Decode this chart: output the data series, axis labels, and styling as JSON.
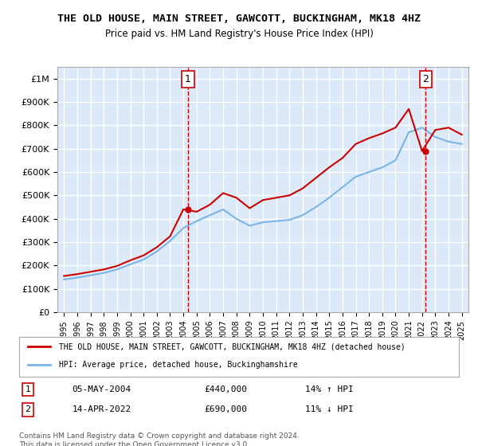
{
  "title": "THE OLD HOUSE, MAIN STREET, GAWCOTT, BUCKINGHAM, MK18 4HZ",
  "subtitle": "Price paid vs. HM Land Registry's House Price Index (HPI)",
  "xlabel": "",
  "ylabel": "",
  "ylim": [
    0,
    1050000
  ],
  "yticks": [
    0,
    100000,
    200000,
    300000,
    400000,
    500000,
    600000,
    700000,
    800000,
    900000,
    1000000
  ],
  "ytick_labels": [
    "£0",
    "£100K",
    "£200K",
    "£300K",
    "£400K",
    "£500K",
    "£600K",
    "£700K",
    "£800K",
    "£900K",
    "£1M"
  ],
  "background_color": "#dce9f8",
  "plot_bg_color": "#dce9f8",
  "grid_color": "#ffffff",
  "sale1_date": "05-MAY-2004",
  "sale1_price": 440000,
  "sale1_label": "1",
  "sale1_hpi_diff": "14% ↑ HPI",
  "sale2_date": "14-APR-2022",
  "sale2_price": 690000,
  "sale2_label": "2",
  "sale2_hpi_diff": "11% ↓ HPI",
  "legend_line1": "THE OLD HOUSE, MAIN STREET, GAWCOTT, BUCKINGHAM, MK18 4HZ (detached house)",
  "legend_line2": "HPI: Average price, detached house, Buckinghamshire",
  "footer": "Contains HM Land Registry data © Crown copyright and database right 2024.\nThis data is licensed under the Open Government Licence v3.0.",
  "hpi_color": "#7ab4e8",
  "price_color": "#cc0000",
  "sale_vline_color": "#cc0000",
  "years": [
    1995,
    1996,
    1997,
    1998,
    1999,
    2000,
    2001,
    2002,
    2003,
    2004,
    2005,
    2006,
    2007,
    2008,
    2009,
    2010,
    2011,
    2012,
    2013,
    2014,
    2015,
    2016,
    2017,
    2018,
    2019,
    2020,
    2021,
    2022,
    2023,
    2024,
    2025
  ],
  "hpi_values": [
    140000,
    148000,
    158000,
    168000,
    183000,
    205000,
    225000,
    260000,
    305000,
    360000,
    390000,
    415000,
    440000,
    400000,
    370000,
    385000,
    390000,
    395000,
    415000,
    450000,
    490000,
    535000,
    580000,
    600000,
    620000,
    650000,
    770000,
    790000,
    750000,
    730000,
    720000
  ],
  "price_paid_values": [
    155000,
    163000,
    173000,
    183000,
    198000,
    222000,
    243000,
    278000,
    325000,
    440000,
    430000,
    460000,
    510000,
    490000,
    445000,
    480000,
    490000,
    500000,
    530000,
    575000,
    620000,
    660000,
    720000,
    745000,
    765000,
    790000,
    870000,
    690000,
    780000,
    790000,
    760000
  ],
  "sale1_x": 2004.35,
  "sale2_x": 2022.28
}
